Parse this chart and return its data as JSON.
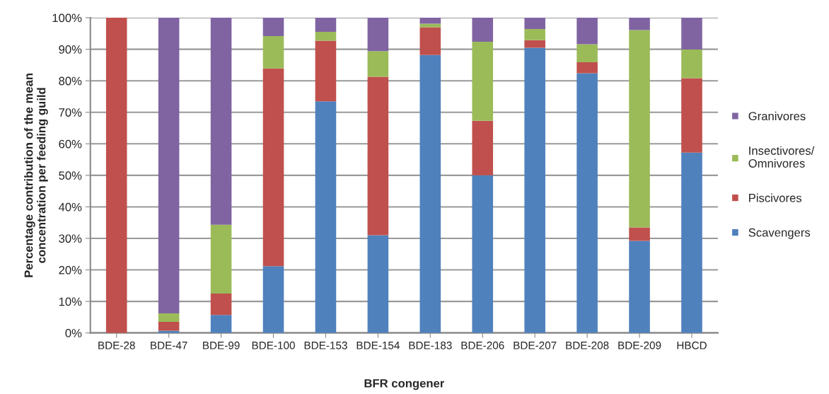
{
  "chart_data": {
    "type": "bar",
    "stacked": true,
    "xlabel": "BFR congener",
    "ylabel": "Percentage contribution of the mean\nconcentration per feeding guild",
    "categories": [
      "BDE-28",
      "BDE-47",
      "BDE-99",
      "BDE-100",
      "BDE-153",
      "BDE-154",
      "BDE-183",
      "BDE-206",
      "BDE-207",
      "BDE-208",
      "BDE-209",
      "HBCD"
    ],
    "series": [
      {
        "name": "Scavengers",
        "color": "#4f81bd",
        "values": [
          0,
          0.7,
          5.7,
          21.2,
          73.5,
          31,
          88.2,
          50,
          90.5,
          82.4,
          29.2,
          57.2
        ]
      },
      {
        "name": "Piscivores",
        "color": "#c0504d",
        "values": [
          100,
          2.8,
          6.8,
          62.7,
          19.2,
          50.3,
          8.8,
          17.3,
          2.4,
          3.5,
          4.3,
          23.6
        ]
      },
      {
        "name": "Insectivores/\nOmnivores",
        "color": "#9bbb59",
        "values": [
          0,
          2.7,
          21.8,
          10.3,
          2.8,
          8.1,
          1.1,
          25.1,
          3.5,
          5.7,
          62.6,
          9.1
        ]
      },
      {
        "name": "Granivores",
        "color": "#8064a2",
        "values": [
          0,
          93.8,
          65.7,
          5.8,
          4.5,
          10.6,
          1.9,
          7.6,
          3.6,
          8.4,
          3.9,
          10.1
        ]
      }
    ],
    "ylim": [
      0,
      100
    ],
    "yticks": [
      {
        "value": 0,
        "label": "0%"
      },
      {
        "value": 10,
        "label": "10%"
      },
      {
        "value": 20,
        "label": "20%"
      },
      {
        "value": 30,
        "label": "30%"
      },
      {
        "value": 40,
        "label": "40%"
      },
      {
        "value": 50,
        "label": "50%"
      },
      {
        "value": 60,
        "label": "60%"
      },
      {
        "value": 70,
        "label": "70%"
      },
      {
        "value": 80,
        "label": "80%"
      },
      {
        "value": 90,
        "label": "90%"
      },
      {
        "value": 100,
        "label": "100%"
      }
    ],
    "grid": "y",
    "legend": "right"
  }
}
